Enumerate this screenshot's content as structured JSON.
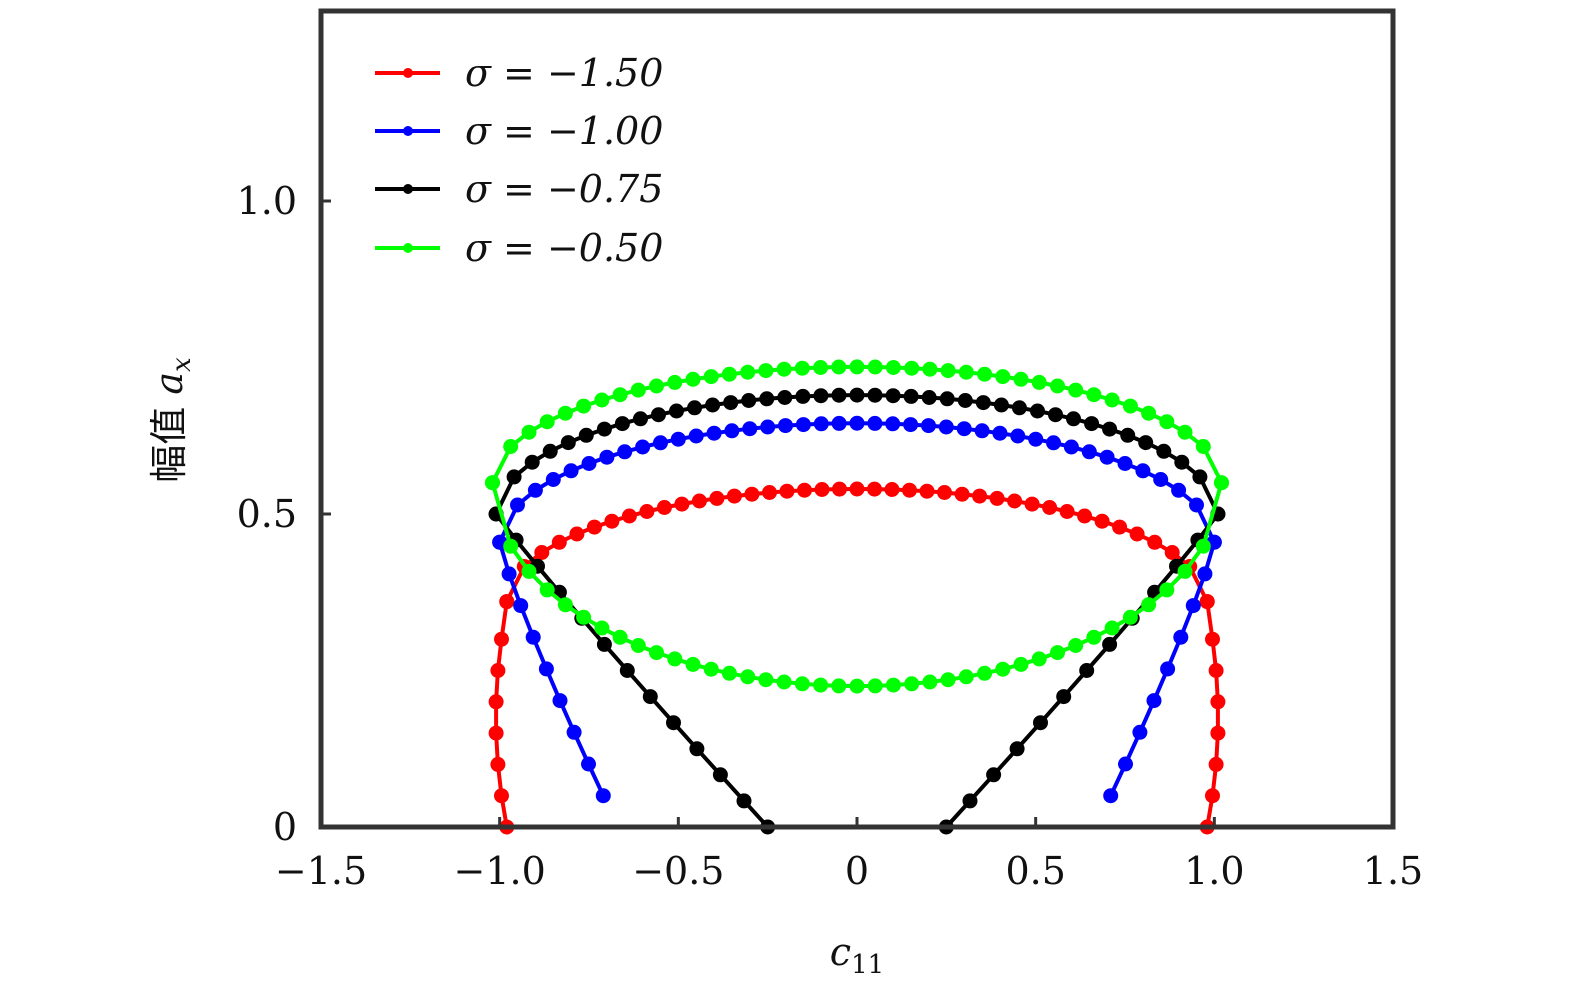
{
  "chart_data": {
    "type": "line",
    "xlabel_main": "c",
    "xlabel_sub": "11",
    "ylabel_prefix": "幅值 ",
    "ylabel_main": "a",
    "ylabel_sub": "x",
    "xlim": [
      -1.5,
      1.5
    ],
    "ylim": [
      0,
      1.3
    ],
    "x_ticks": [
      -1.5,
      -1.0,
      -0.5,
      0,
      0.5,
      1.0,
      1.5
    ],
    "x_tick_labels": [
      "−1.5",
      "−1.0",
      "−0.5",
      "0",
      "0.5",
      "1.0",
      "1.5"
    ],
    "y_ticks": [
      0,
      0.5,
      1.0
    ],
    "y_tick_labels": [
      "0",
      "0.5",
      "1.0"
    ],
    "grid": false,
    "legend_position": "top-left",
    "series": [
      {
        "name": "σ = −1.50",
        "color": "#ff0000",
        "params": {
          "xmax": 0.98,
          "y0": 0.54,
          "yturn": 0.36,
          "ymin": 0.0
        }
      },
      {
        "name": "σ = −1.00",
        "color": "#0000ff",
        "params": {
          "xmax": 1.0,
          "y0": 0.645,
          "yturn": 0.455,
          "ymin": 0.05,
          "xmin_end": 0.71
        }
      },
      {
        "name": "σ = −0.75",
        "color": "#000000",
        "params": {
          "xmax": 1.01,
          "y0": 0.69,
          "yturn": 0.5,
          "ymin": 0.0,
          "xmin_end": 0.25
        }
      },
      {
        "name": "σ = −0.50",
        "color": "#00ff00",
        "params": {
          "xmax": 1.02,
          "y0": 0.735,
          "yturn": 0.55,
          "ymin": 0.225
        }
      }
    ]
  }
}
